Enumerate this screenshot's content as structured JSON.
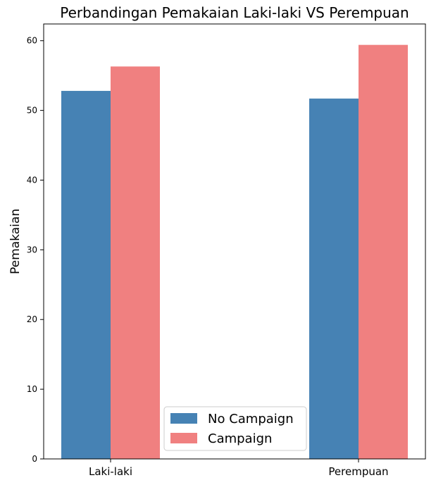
{
  "chart_data": {
    "type": "bar",
    "title": "Perbandingan Pemakaian Laki-laki VS Perempuan",
    "xlabel": "",
    "ylabel": "Pemakaian",
    "categories": [
      "Laki-laki",
      "Perempuan"
    ],
    "series": [
      {
        "name": "No Campaign",
        "values": [
          52.8,
          51.7
        ],
        "color": "#4682b4"
      },
      {
        "name": "Campaign",
        "values": [
          56.3,
          59.4
        ],
        "color": "#f08080"
      }
    ],
    "ylim": [
      0,
      62.4
    ],
    "yticks": [
      0,
      10,
      20,
      30,
      40,
      50,
      60
    ],
    "grid": false,
    "legend_position": "bottom-center"
  }
}
